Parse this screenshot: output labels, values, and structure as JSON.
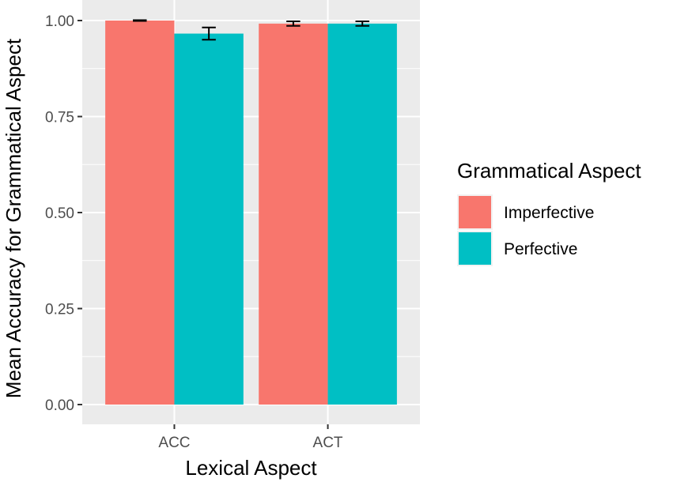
{
  "chart_data": {
    "type": "bar",
    "xlabel": "Lexical Aspect",
    "ylabel": "Mean Accuracy for Grammatical Aspect",
    "categories": [
      "ACC",
      "ACT"
    ],
    "ylim": [
      0,
      1.0
    ],
    "yticks": [
      0.0,
      0.25,
      0.5,
      0.75,
      1.0
    ],
    "ytick_labels": [
      "0.00",
      "0.25",
      "0.50",
      "0.75",
      "1.00"
    ],
    "grid": true,
    "legend": {
      "title": "Grammatical Aspect",
      "position": "right"
    },
    "series": [
      {
        "name": "Imperfective",
        "color": "#F8766D",
        "values": [
          1.0,
          0.992
        ],
        "error": [
          0.001,
          0.006
        ]
      },
      {
        "name": "Perfective",
        "color": "#00BFC4",
        "values": [
          0.966,
          0.992
        ],
        "error": [
          0.016,
          0.006
        ]
      }
    ],
    "panel_color": "#EBEBEB",
    "gridline_color": "#FFFFFF"
  }
}
